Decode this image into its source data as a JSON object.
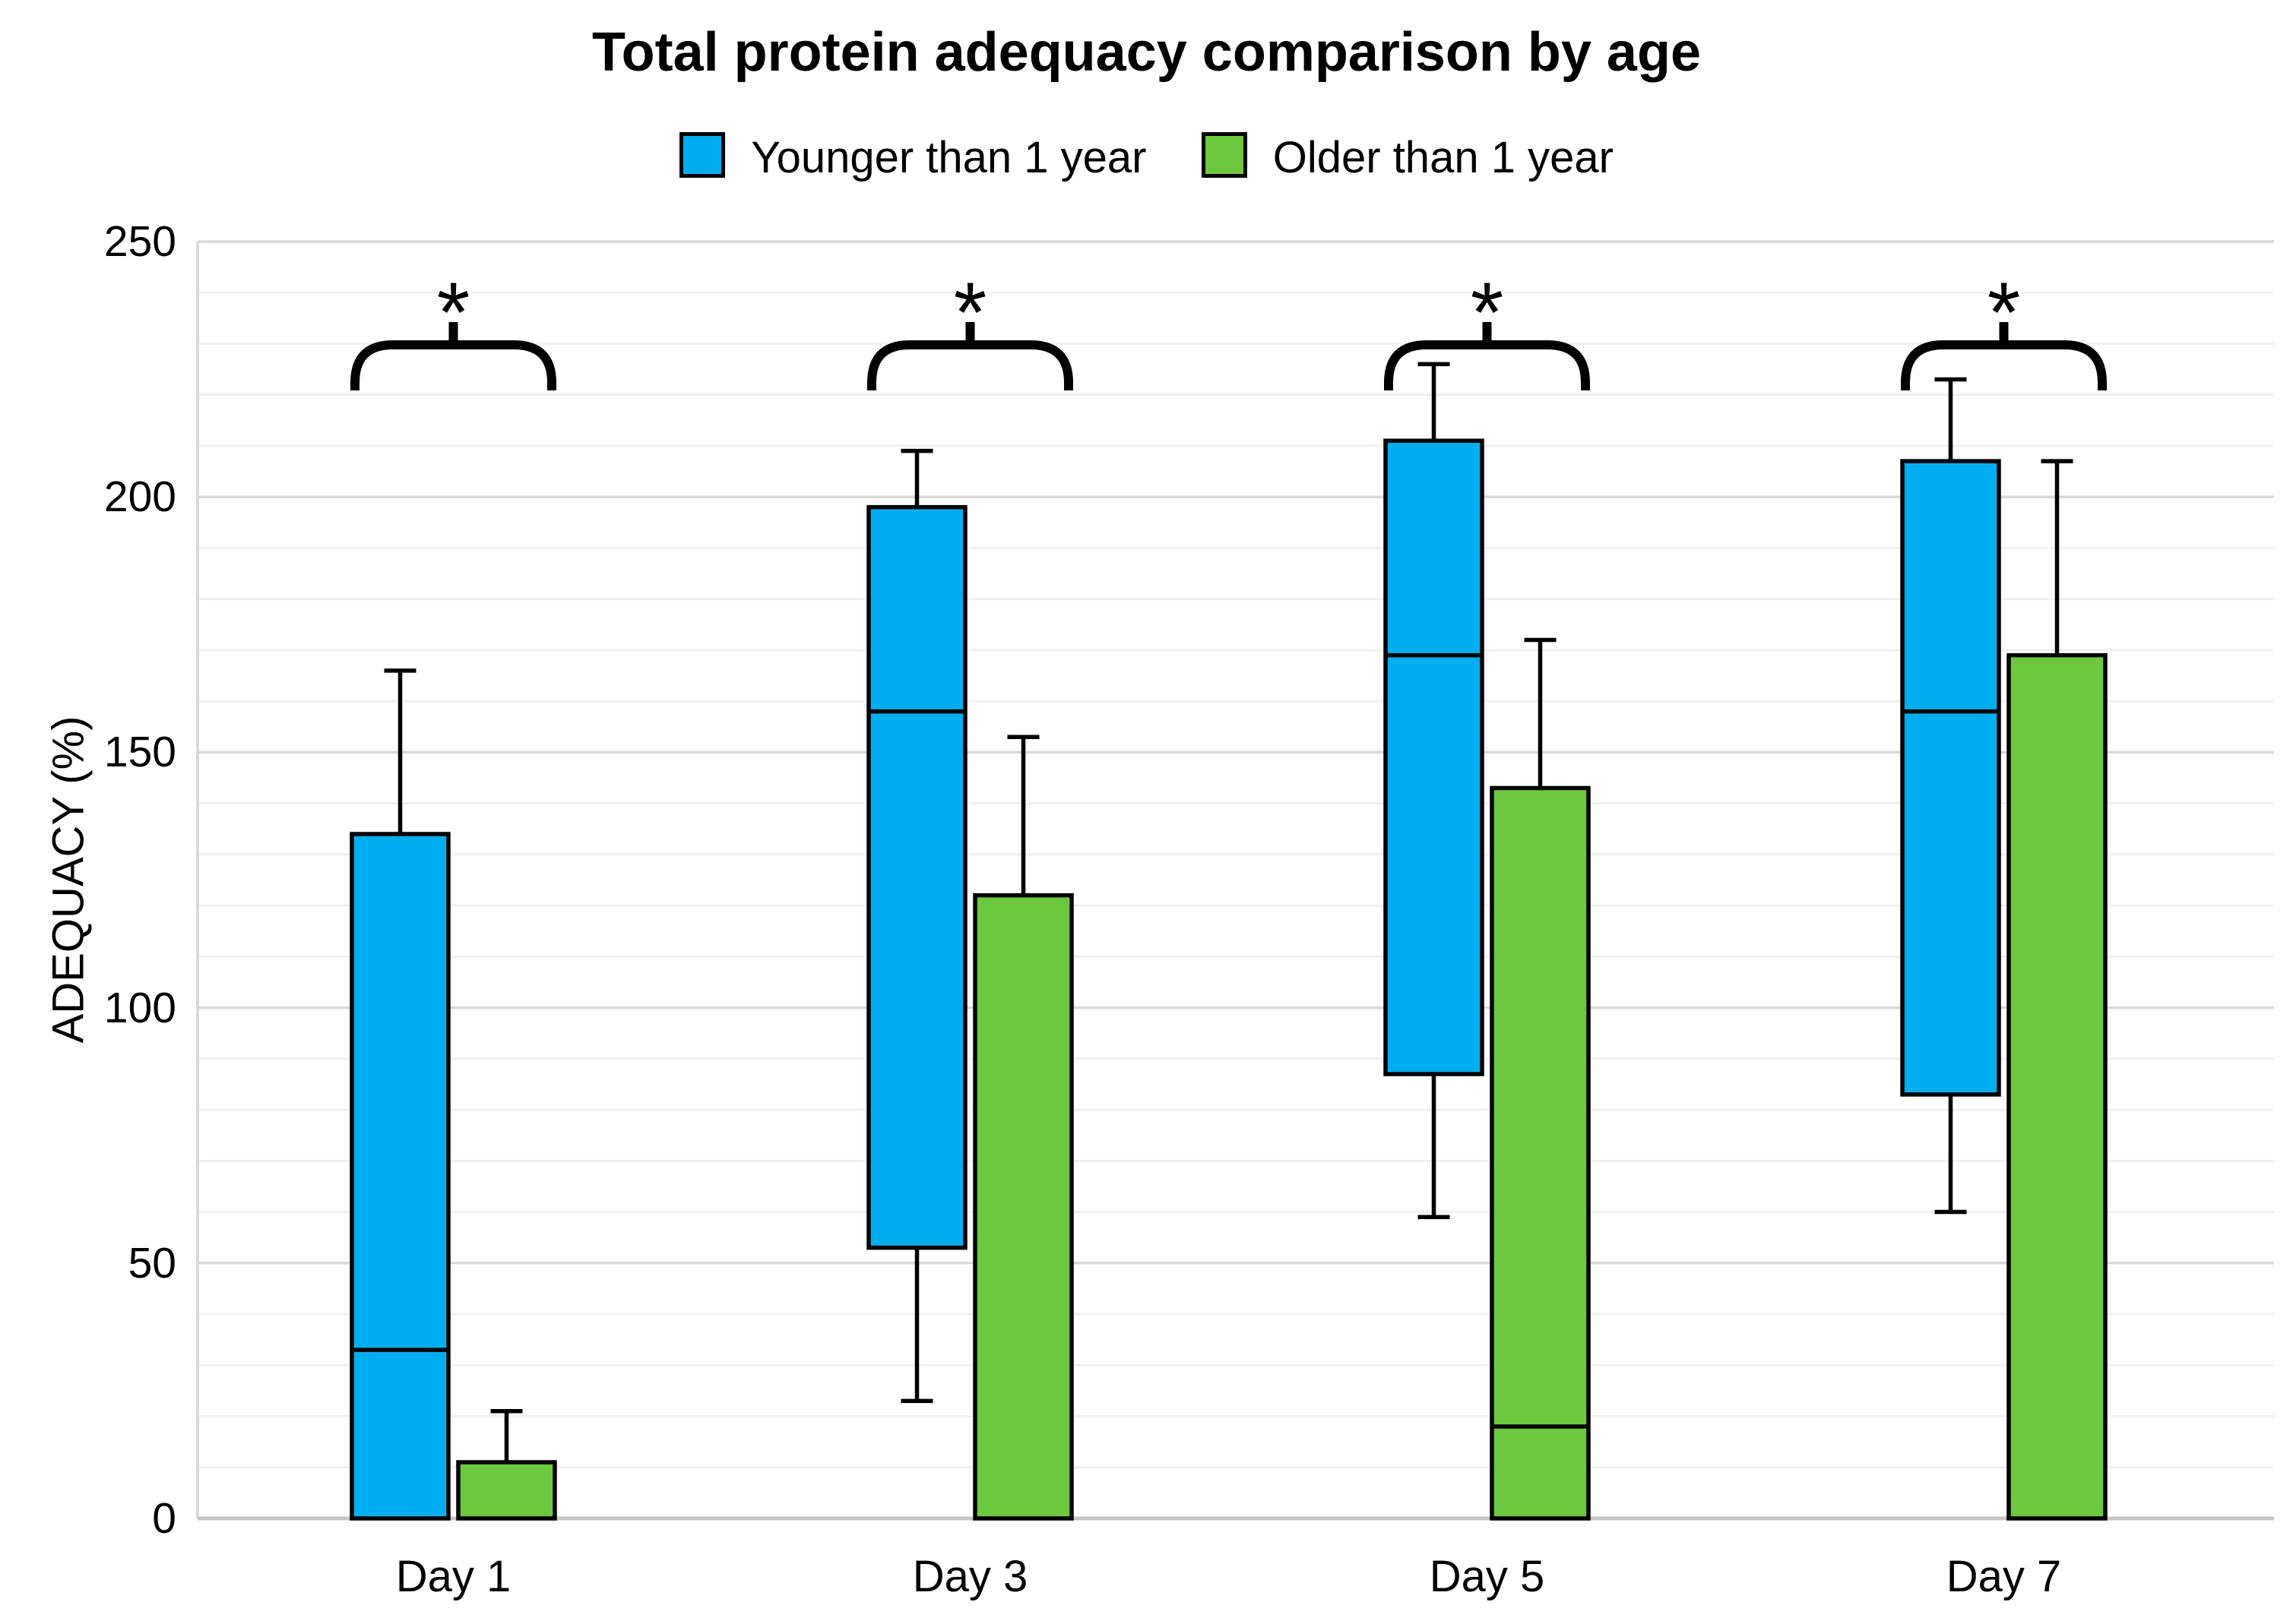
{
  "chart": {
    "title": "Total protein adequacy comparison by age",
    "ylabel": "ADEQUACY (%)",
    "legend": [
      "Younger than 1 year",
      "Older than 1 year"
    ]
  },
  "chart_data": {
    "type": "box",
    "title": "Total protein adequacy comparison by age",
    "xlabel": "",
    "ylabel": "ADEQUACY (%)",
    "categories": [
      "Day 1",
      "Day 3",
      "Day 5",
      "Day 7"
    ],
    "ylim": [
      0,
      250
    ],
    "yticks": [
      0,
      50,
      100,
      150,
      200,
      250
    ],
    "minor_grid_step": 10,
    "grid": true,
    "legend_position": "top-center",
    "series": [
      {
        "name": "Younger than 1 year",
        "color": "#00AEEF",
        "boxes": [
          {
            "category": "Day 1",
            "q1": 0,
            "median": 33,
            "q3": 134,
            "whisker_low": null,
            "whisker_high": 166
          },
          {
            "category": "Day 3",
            "q1": 53,
            "median": 158,
            "q3": 198,
            "whisker_low": 23,
            "whisker_high": 209
          },
          {
            "category": "Day 5",
            "q1": 87,
            "median": 169,
            "q3": 211,
            "whisker_low": 59,
            "whisker_high": 226
          },
          {
            "category": "Day 7",
            "q1": 83,
            "median": 158,
            "q3": 207,
            "whisker_low": 60,
            "whisker_high": 223
          }
        ]
      },
      {
        "name": "Older than 1 year",
        "color": "#6CC93F",
        "boxes": [
          {
            "category": "Day 1",
            "q1": 0,
            "median": null,
            "q3": 11,
            "whisker_low": null,
            "whisker_high": 21
          },
          {
            "category": "Day 3",
            "q1": 0,
            "median": null,
            "q3": 122,
            "whisker_low": null,
            "whisker_high": 153
          },
          {
            "category": "Day 5",
            "q1": 0,
            "median": 18,
            "q3": 143,
            "whisker_low": null,
            "whisker_high": 172
          },
          {
            "category": "Day 7",
            "q1": 0,
            "median": null,
            "q3": 169,
            "whisker_low": null,
            "whisker_high": 207
          }
        ]
      }
    ],
    "significance": {
      "label": "*",
      "categories": [
        "Day 1",
        "Day 3",
        "Day 5",
        "Day 7"
      ]
    },
    "colors": {
      "box_border": "#000000",
      "grid_minor": "#f1f1f1",
      "grid_major": "#d9d9d9",
      "baseline": "#c6c6c6",
      "axis_border": "#d9d9d9",
      "bracket": "#000000",
      "text": "#000000"
    }
  }
}
